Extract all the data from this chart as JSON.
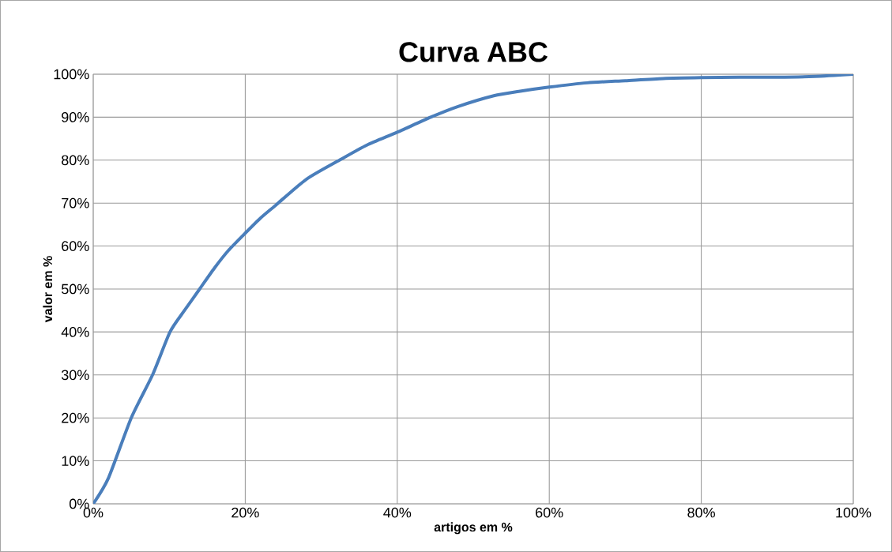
{
  "chart_data": {
    "type": "line",
    "title": "Curva ABC",
    "xlabel": "artigos em %",
    "ylabel": "valor em %",
    "x": [
      0,
      2,
      5,
      7.8,
      10.1,
      12,
      14,
      16,
      17.8,
      20,
      22,
      24,
      28,
      32.4,
      36,
      40,
      44.4,
      48,
      52.7,
      56,
      60,
      65,
      70,
      75,
      80,
      85,
      90,
      95,
      100
    ],
    "series": [
      {
        "color": "#4a7ebb",
        "values": [
          0,
          6,
          20,
          30,
          40,
          45,
          50,
          55,
          59,
          63,
          66.5,
          69.5,
          75.5,
          80,
          83.5,
          86.5,
          90,
          92.5,
          95,
          96,
          97,
          98,
          98.5,
          99,
          99.2,
          99.3,
          99.3,
          99.5,
          100
        ]
      }
    ],
    "xlim": [
      0,
      100
    ],
    "ylim": [
      0,
      100
    ],
    "xticks": [
      {
        "value": 0,
        "label": "0%"
      },
      {
        "value": 20,
        "label": "20%"
      },
      {
        "value": 40,
        "label": "40%"
      },
      {
        "value": 60,
        "label": "60%"
      },
      {
        "value": 80,
        "label": "80%"
      },
      {
        "value": 100,
        "label": "100%"
      }
    ],
    "yticks": [
      {
        "value": 0,
        "label": "0%"
      },
      {
        "value": 10,
        "label": "10%"
      },
      {
        "value": 20,
        "label": "20%"
      },
      {
        "value": 30,
        "label": "30%"
      },
      {
        "value": 40,
        "label": "40%"
      },
      {
        "value": 50,
        "label": "50%"
      },
      {
        "value": 60,
        "label": "60%"
      },
      {
        "value": 70,
        "label": "70%"
      },
      {
        "value": 80,
        "label": "80%"
      },
      {
        "value": 90,
        "label": "90%"
      },
      {
        "value": 100,
        "label": "100%"
      }
    ],
    "grid": true
  }
}
